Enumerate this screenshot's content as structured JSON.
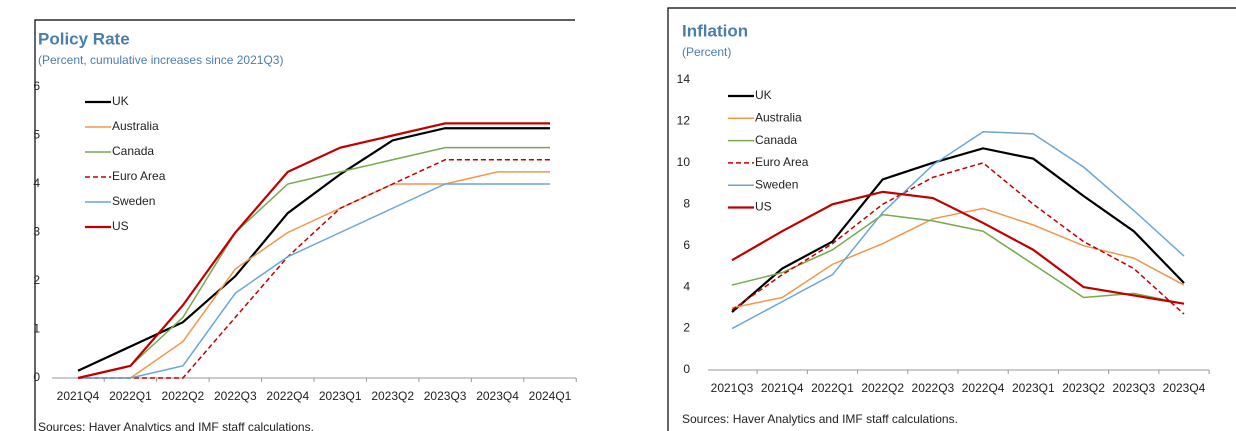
{
  "chart_data": [
    {
      "type": "line",
      "title": "Policy Rate",
      "subtitle": "(Percent, cumulative increases since 2021Q3)",
      "categories": [
        "2021Q4",
        "2022Q1",
        "2022Q2",
        "2022Q3",
        "2022Q4",
        "2023Q1",
        "2023Q2",
        "2023Q3",
        "2023Q4",
        "2024Q1"
      ],
      "ylim": [
        0,
        6
      ],
      "yticks": [
        0,
        1,
        2,
        3,
        4,
        5,
        6
      ],
      "series": [
        {
          "name": "UK",
          "color": "#000000",
          "dashed": false,
          "values": [
            0.15,
            0.65,
            1.15,
            2.1,
            3.4,
            4.2,
            4.9,
            5.15,
            5.15,
            5.15
          ]
        },
        {
          "name": "Australia",
          "color": "#f0974d",
          "dashed": false,
          "values": [
            0,
            0,
            0.75,
            2.25,
            3.0,
            3.5,
            4.0,
            4.0,
            4.25,
            4.25
          ]
        },
        {
          "name": "Canada",
          "color": "#78a94b",
          "dashed": false,
          "values": [
            0,
            0.25,
            1.25,
            3.0,
            4.0,
            4.25,
            4.5,
            4.75,
            4.75,
            4.75
          ]
        },
        {
          "name": "Euro Area",
          "color": "#c00000",
          "dashed": true,
          "values": [
            0,
            0,
            0,
            1.25,
            2.5,
            3.5,
            4.0,
            4.5,
            4.5,
            4.5
          ]
        },
        {
          "name": "Sweden",
          "color": "#6aa6d6",
          "dashed": false,
          "values": [
            0,
            0,
            0.25,
            1.75,
            2.5,
            3.0,
            3.5,
            4.0,
            4.0,
            4.0
          ]
        },
        {
          "name": "US",
          "color": "#c00000",
          "dashed": false,
          "values": [
            0,
            0.25,
            1.5,
            3.0,
            4.25,
            4.75,
            5.0,
            5.25,
            5.25,
            5.25
          ]
        }
      ],
      "source": "Sources: Haver Analytics and IMF staff calculations."
    },
    {
      "type": "line",
      "title": "Inflation",
      "subtitle": "(Percent)",
      "categories": [
        "2021Q3",
        "2021Q4",
        "2022Q1",
        "2022Q2",
        "2022Q3",
        "2022Q4",
        "2023Q1",
        "2023Q2",
        "2023Q3",
        "2023Q4"
      ],
      "ylim": [
        0,
        14
      ],
      "yticks": [
        0,
        2,
        4,
        6,
        8,
        10,
        12,
        14
      ],
      "series": [
        {
          "name": "UK",
          "color": "#000000",
          "dashed": false,
          "values": [
            2.8,
            4.9,
            6.2,
            9.2,
            10.0,
            10.7,
            10.2,
            8.4,
            6.7,
            4.2
          ]
        },
        {
          "name": "Australia",
          "color": "#f0974d",
          "dashed": false,
          "values": [
            3.0,
            3.5,
            5.1,
            6.1,
            7.3,
            7.8,
            7.0,
            6.0,
            5.4,
            4.1
          ]
        },
        {
          "name": "Canada",
          "color": "#78a94b",
          "dashed": false,
          "values": [
            4.1,
            4.7,
            5.8,
            7.5,
            7.2,
            6.7,
            5.1,
            3.5,
            3.7,
            3.2
          ]
        },
        {
          "name": "Euro Area",
          "color": "#c00000",
          "dashed": true,
          "values": [
            2.9,
            4.6,
            6.1,
            8.0,
            9.3,
            10.0,
            8.0,
            6.2,
            4.9,
            2.7
          ]
        },
        {
          "name": "Sweden",
          "color": "#6aa6d6",
          "dashed": false,
          "values": [
            2.0,
            3.3,
            4.6,
            7.6,
            9.9,
            11.5,
            11.4,
            9.8,
            7.7,
            5.5
          ]
        },
        {
          "name": "US",
          "color": "#c00000",
          "dashed": false,
          "values": [
            5.3,
            6.7,
            8.0,
            8.6,
            8.3,
            7.1,
            5.8,
            4.0,
            3.6,
            3.2
          ]
        }
      ],
      "source": "Sources: Haver Analytics and IMF staff calculations."
    }
  ]
}
